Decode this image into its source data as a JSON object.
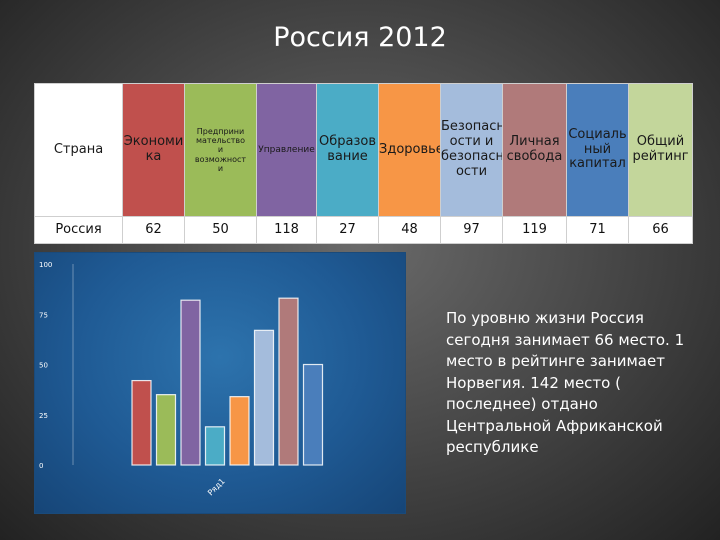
{
  "title": "Россия 2012",
  "table": {
    "headers": [
      "Страна",
      "Экономика",
      "Предпринимательство и возможности",
      "Управление",
      "Образование",
      "Здоровье",
      "Безопасность и безопасности",
      "Личная свобода",
      "Социальный капитал",
      "Общий рейтинг"
    ],
    "header_display": [
      "Страна",
      "Экономи\nка",
      "Предприни\nмательство\nи\nвозможност\nи",
      "Управление",
      "Образов\nвание",
      "Здоровье",
      "Безопасн\nости и\nбезопасн\nости",
      "Личная\nсвобода",
      "Социаль\nный\nкапитал",
      "Общий\nрейтинг"
    ],
    "row": [
      "Россия",
      "62",
      "50",
      "118",
      "27",
      "48",
      "97",
      "119",
      "71",
      "66"
    ],
    "colors": [
      "#ffffff",
      "#c0504d",
      "#9bbb59",
      "#8064a2",
      "#4bacc6",
      "#f79646",
      "#a4bcdc",
      "#b07a7a",
      "#4a7ebb",
      "#c3d69b"
    ]
  },
  "chart_data": {
    "type": "bar",
    "ylim": [
      0,
      100
    ],
    "y_ticks": [
      "0",
      "25",
      "50",
      "75",
      "100"
    ],
    "x_label": "Ряд1",
    "values": [
      42,
      35,
      82,
      19,
      34,
      67,
      83,
      50
    ],
    "colors": [
      "#c0504d",
      "#9bbb59",
      "#8064a2",
      "#4bacc6",
      "#f79646",
      "#a4bcdc",
      "#b07a7a",
      "#4a7ebb"
    ]
  },
  "description": "По уровню жизни Россия сегодня занимает 66 место. 1 место в рейтинге занимает Норвегия. 142 место ( последнее) отдано Центральной Африканской республике"
}
